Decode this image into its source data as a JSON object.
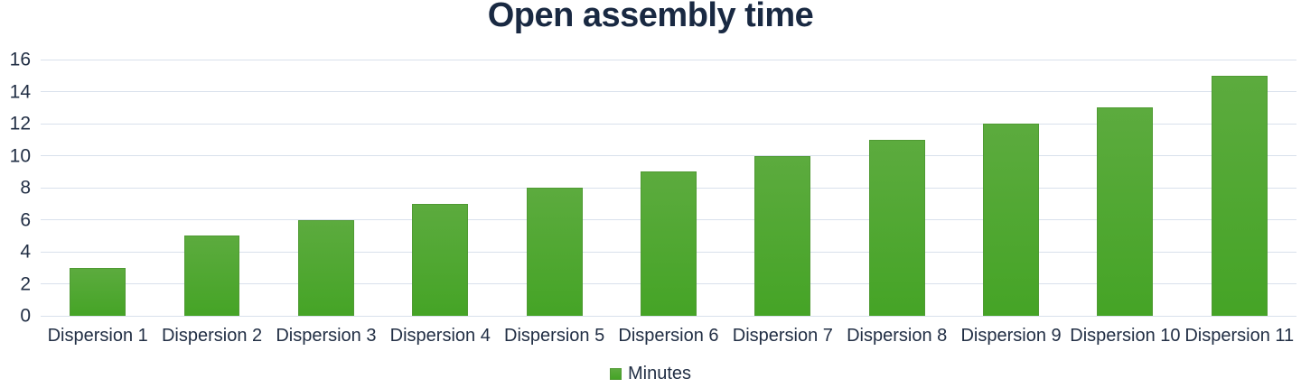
{
  "chart_data": {
    "type": "bar",
    "title": "Open assembly time",
    "categories": [
      "Dispersion 1",
      "Dispersion 2",
      "Dispersion 3",
      "Dispersion 4",
      "Dispersion 5",
      "Dispersion 6",
      "Dispersion 7",
      "Dispersion 8",
      "Dispersion 9",
      "Dispersion 10",
      "Dispersion 11"
    ],
    "series": [
      {
        "name": "Minutes",
        "values": [
          3,
          5,
          6,
          7,
          8,
          9,
          10,
          11,
          12,
          13,
          15
        ]
      }
    ],
    "xlabel": "",
    "ylabel": "",
    "ylim": [
      0,
      16
    ],
    "ytick_step": 2,
    "grid": "horizontal",
    "legend_position": "bottom"
  },
  "colors": {
    "bar_top": "#5cab3e",
    "bar_bottom": "#45a426",
    "bar_border": "#4f9a33",
    "title_text": "#192942",
    "axis_text": "#222f45",
    "gridline": "#d9e1ec",
    "background": "#ffffff"
  }
}
